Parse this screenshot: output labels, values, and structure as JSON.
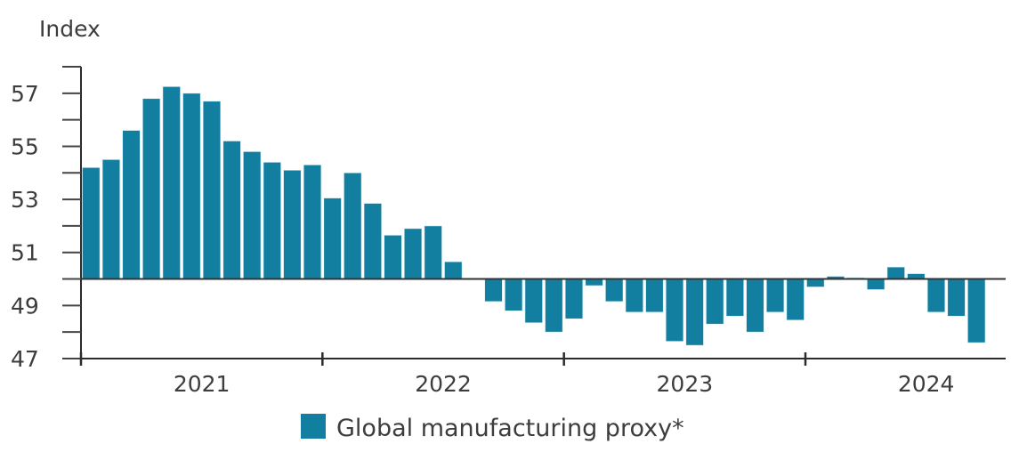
{
  "chart_data": {
    "type": "bar",
    "title": "",
    "ylabel": "Index",
    "xlabel": "",
    "ylim": [
      47,
      58
    ],
    "baseline": 50,
    "yticks": [
      47,
      49,
      51,
      53,
      55,
      57
    ],
    "yminor_step": 1,
    "xticks": [
      "2021",
      "2022",
      "2023",
      "2024"
    ],
    "grid": false,
    "legend": {
      "position": "bottom-center",
      "entries": [
        "Global manufacturing proxy*"
      ]
    },
    "colors": {
      "bar": "#137fa0",
      "axis": "#2b2b2b",
      "text": "#3d3d3d"
    },
    "categories": [
      "2021-01",
      "2021-02",
      "2021-03",
      "2021-04",
      "2021-05",
      "2021-06",
      "2021-07",
      "2021-08",
      "2021-09",
      "2021-10",
      "2021-11",
      "2021-12",
      "2022-01",
      "2022-02",
      "2022-03",
      "2022-04",
      "2022-05",
      "2022-06",
      "2022-07",
      "2022-08",
      "2022-09",
      "2022-10",
      "2022-11",
      "2022-12",
      "2023-01",
      "2023-02",
      "2023-03",
      "2023-04",
      "2023-05",
      "2023-06",
      "2023-07",
      "2023-08",
      "2023-09",
      "2023-10",
      "2023-11",
      "2023-12",
      "2024-01",
      "2024-02",
      "2024-03",
      "2024-04",
      "2024-05",
      "2024-06",
      "2024-07",
      "2024-08",
      "2024-09"
    ],
    "series": [
      {
        "name": "Global manufacturing proxy*",
        "values": [
          54.2,
          54.5,
          55.6,
          56.8,
          57.25,
          57.0,
          56.7,
          55.2,
          54.8,
          54.4,
          54.1,
          54.3,
          53.05,
          54.0,
          52.85,
          51.65,
          51.9,
          52.0,
          50.65,
          50.0,
          49.15,
          48.8,
          48.35,
          48.0,
          48.5,
          49.75,
          49.15,
          48.75,
          48.75,
          47.65,
          47.5,
          48.3,
          48.6,
          48.0,
          48.75,
          48.45,
          49.7,
          50.1,
          50.05,
          49.6,
          50.45,
          50.2,
          48.75,
          48.6,
          47.6
        ]
      }
    ]
  }
}
